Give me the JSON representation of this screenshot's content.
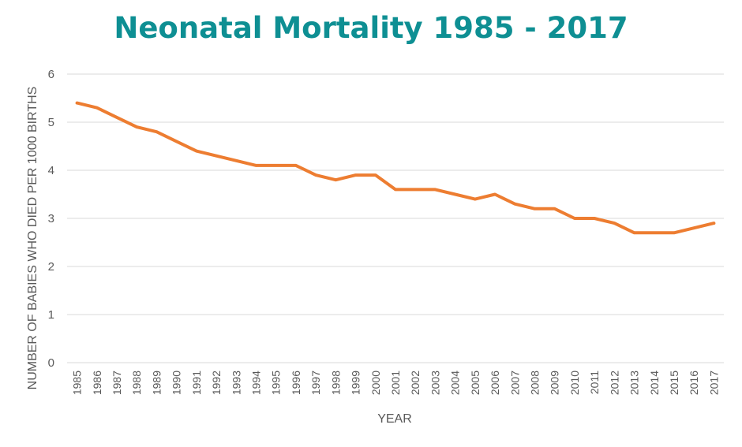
{
  "chart_data": {
    "type": "line",
    "title": "Neonatal Mortality 1985 - 2017",
    "xlabel": "YEAR",
    "ylabel": "NUMBER OF BABIES WHO DIED PER 1000 BIRTHS",
    "ylim": [
      0,
      6
    ],
    "y_ticks": [
      "0",
      "1",
      "2",
      "3",
      "4",
      "5",
      "6"
    ],
    "grid": true,
    "legend": "none",
    "categories": [
      "1985",
      "1986",
      "1987",
      "1988",
      "1989",
      "1990",
      "1991",
      "1992",
      "1993",
      "1994",
      "1995",
      "1996",
      "1997",
      "1998",
      "1999",
      "2000",
      "2001",
      "2002",
      "2003",
      "2004",
      "2005",
      "2006",
      "2007",
      "2008",
      "2009",
      "2010",
      "2011",
      "2012",
      "2013",
      "2014",
      "2015",
      "2016",
      "2017"
    ],
    "series": [
      {
        "color": "#ed7d31",
        "values": [
          5.4,
          5.3,
          5.1,
          4.9,
          4.8,
          4.6,
          4.4,
          4.3,
          4.2,
          4.1,
          4.1,
          4.1,
          3.9,
          3.8,
          3.9,
          3.9,
          3.6,
          3.6,
          3.6,
          3.5,
          3.4,
          3.5,
          3.3,
          3.2,
          3.2,
          3.0,
          3.0,
          2.9,
          2.7,
          2.7,
          2.7,
          2.8,
          2.9
        ]
      }
    ],
    "title_color": "#0e8f93"
  }
}
